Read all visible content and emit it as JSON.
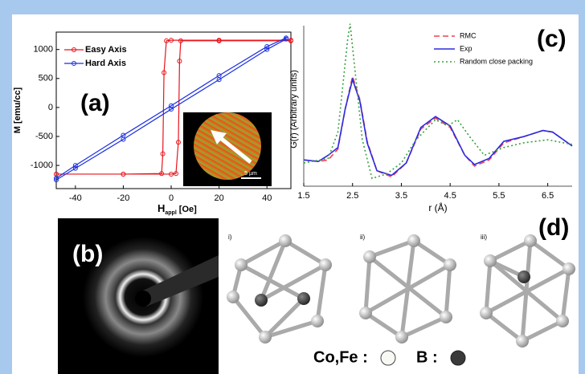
{
  "chart_data": [
    {
      "type": "line",
      "panel_label": "(a)",
      "markers": true,
      "box": true,
      "y_label": "M [emu/cc]",
      "x_label_main": "H",
      "x_label_sub": "appl",
      "x_label_unit": "[Oe]",
      "xlim": [
        -48,
        50
      ],
      "xticks": [
        -40,
        -20,
        0,
        20,
        40
      ],
      "ylim": [
        -1400,
        1300
      ],
      "yticks": [
        -1000,
        -500,
        0,
        500,
        1000
      ],
      "series": [
        {
          "name": "Easy Axis",
          "color": "#e8141c",
          "style": "solid",
          "x": [
            -48,
            -20,
            0,
            2,
            3,
            3.5,
            4,
            20,
            50,
            50,
            20,
            0,
            -2,
            -3,
            -3.5,
            -4,
            -20,
            -48
          ],
          "values": [
            -1150,
            -1150,
            -1150,
            -1140,
            -600,
            800,
            1150,
            1150,
            1150,
            1160,
            1160,
            1160,
            1150,
            600,
            -800,
            -1140,
            -1150,
            -1150
          ]
        },
        {
          "name": "Hard Axis",
          "color": "#1a2fe0",
          "style": "solid",
          "x": [
            -48,
            -40,
            -20,
            0,
            20,
            40,
            48,
            48,
            40,
            20,
            0,
            -20,
            -40,
            -48
          ],
          "values": [
            -1250,
            -1050,
            -550,
            -30,
            480,
            1000,
            1180,
            1200,
            1050,
            550,
            30,
            -480,
            -1000,
            -1220
          ]
        }
      ]
    },
    {
      "type": "line",
      "panel_label": "(c)",
      "markers": false,
      "box": false,
      "y_label": "G(r) (Arbitrary units)",
      "x_label": "r (Å)",
      "xlim": [
        1.5,
        7.0
      ],
      "xticks": [
        1.5,
        2.5,
        3.5,
        4.5,
        5.5,
        6.5
      ],
      "ylim": [
        0,
        11
      ],
      "series": [
        {
          "name": "RMC",
          "color": "#f04050",
          "style": "dashed",
          "x": [
            1.5,
            1.8,
            2.0,
            2.2,
            2.35,
            2.5,
            2.65,
            2.8,
            3.0,
            3.3,
            3.6,
            3.9,
            4.2,
            4.5,
            4.8,
            5.0,
            5.3,
            5.6,
            6.0,
            6.4,
            6.6,
            7.0
          ],
          "values": [
            1.7,
            1.6,
            1.7,
            2.4,
            5.0,
            7.1,
            5.6,
            2.9,
            1.0,
            0.6,
            1.5,
            3.7,
            4.4,
            3.8,
            2.0,
            1.3,
            1.7,
            2.8,
            3.2,
            3.6,
            3.5,
            2.6
          ]
        },
        {
          "name": "Exp",
          "color": "#2a2ae0",
          "style": "solid",
          "x": [
            1.5,
            1.8,
            2.0,
            2.2,
            2.35,
            2.5,
            2.65,
            2.8,
            3.0,
            3.3,
            3.6,
            3.9,
            4.2,
            4.5,
            4.8,
            5.0,
            5.3,
            5.6,
            6.0,
            6.4,
            6.6,
            7.0
          ],
          "values": [
            1.7,
            1.6,
            2.0,
            2.5,
            5.0,
            6.9,
            5.5,
            2.8,
            1.0,
            0.7,
            1.5,
            3.8,
            4.5,
            3.9,
            2.0,
            1.4,
            1.8,
            2.9,
            3.2,
            3.6,
            3.5,
            2.6
          ]
        },
        {
          "name": "Random close packing",
          "color": "#3aa040",
          "style": "dotted",
          "x": [
            1.5,
            2.0,
            2.2,
            2.4,
            2.45,
            2.7,
            2.9,
            3.2,
            3.5,
            3.8,
            4.2,
            4.45,
            4.65,
            4.9,
            5.2,
            5.6,
            6.0,
            6.5,
            7.0
          ],
          "values": [
            1.5,
            1.8,
            3.5,
            9.5,
            10.5,
            3.0,
            0.5,
            0.8,
            1.5,
            3.0,
            4.3,
            3.9,
            4.3,
            3.2,
            2.0,
            2.5,
            2.8,
            3.0,
            2.7
          ]
        }
      ]
    }
  ],
  "inset": {
    "scale_bar": "5 µm"
  },
  "panel_b": {
    "label": "(b)"
  },
  "panel_d": {
    "label": "(d)",
    "structures": [
      "i)",
      "ii)",
      "iii)"
    ],
    "legend": [
      "Co,Fe :",
      "B :"
    ]
  }
}
